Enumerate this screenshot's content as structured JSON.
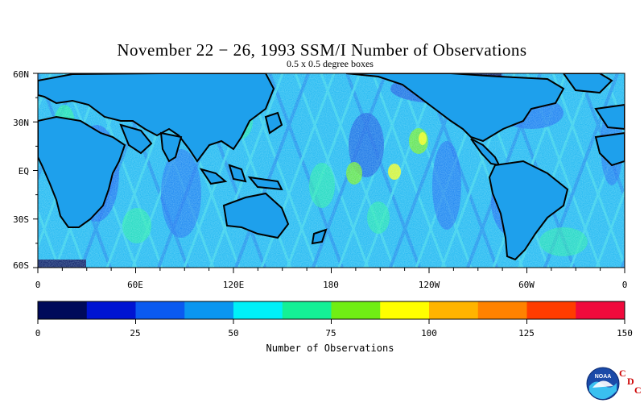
{
  "title": "November 22 − 26, 1993 SSM/I Number of Observations",
  "subtitle": "0.5 x 0.5 degree boxes",
  "lat_labels": [
    "60N",
    "30N",
    "EQ",
    "30S",
    "60S"
  ],
  "lon_labels": [
    "0",
    "60E",
    "120E",
    "180",
    "120W",
    "60W",
    "0"
  ],
  "colorbar": {
    "title": "Number of Observations",
    "tick_labels": [
      "0",
      "25",
      "50",
      "75",
      "100",
      "125",
      "150"
    ],
    "bin_colors": [
      "#000a5a",
      "#0014d2",
      "#0a5af0",
      "#0a96f0",
      "#00f0f8",
      "#14f096",
      "#70ee14",
      "#ffff00",
      "#ffb400",
      "#ff8200",
      "#ff3c00",
      "#f00a3c"
    ]
  },
  "logo": {
    "text": "NOAA",
    "cdc_letters": [
      "C",
      "D",
      "C"
    ]
  }
}
